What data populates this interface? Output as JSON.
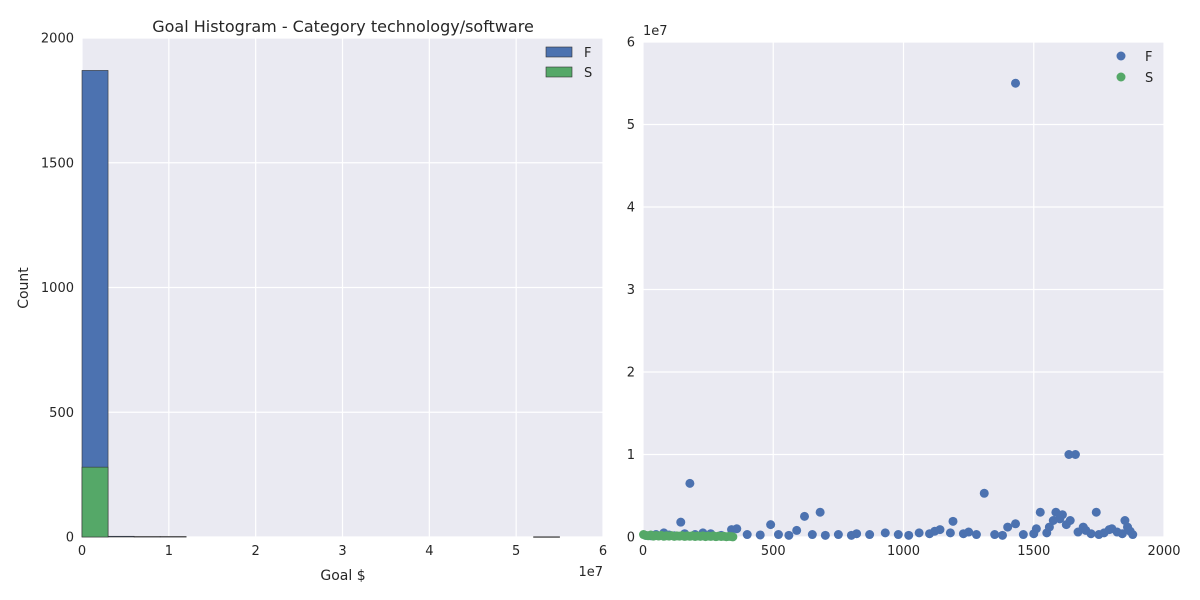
{
  "chart_data": [
    {
      "type": "bar",
      "subtype": "histogram",
      "title": "Goal Histogram - Category technology/software",
      "xlabel": "Goal $",
      "ylabel": "Count",
      "x_offset_label": "1e7",
      "xlim": [
        0,
        60000000
      ],
      "ylim": [
        0,
        2000
      ],
      "xticks": [
        "0",
        "1",
        "2",
        "3",
        "4",
        "5",
        "6"
      ],
      "yticks": [
        "0",
        "500",
        "1000",
        "1500",
        "2000"
      ],
      "legend_placement": "top-right",
      "grid": true,
      "series": [
        {
          "name": "F",
          "color": "#4c72b0",
          "bins": [
            {
              "x0": 0,
              "x1": 3000000,
              "count": 1870
            },
            {
              "x0": 3000000,
              "x1": 6000000,
              "count": 3
            },
            {
              "x0": 6000000,
              "x1": 9000000,
              "count": 2
            },
            {
              "x0": 9000000,
              "x1": 12000000,
              "count": 2
            },
            {
              "x0": 52000000,
              "x1": 55000000,
              "count": 1
            }
          ]
        },
        {
          "name": "S",
          "color": "#55a868",
          "bins": [
            {
              "x0": 0,
              "x1": 3000000,
              "count": 280
            }
          ]
        }
      ]
    },
    {
      "type": "scatter",
      "title": "",
      "xlabel": "",
      "ylabel": "",
      "y_offset_label": "1e7",
      "xlim": [
        0,
        2000
      ],
      "ylim": [
        0,
        60000000
      ],
      "xticks": [
        "0",
        "500",
        "1000",
        "1500",
        "2000"
      ],
      "yticks": [
        "0",
        "1",
        "2",
        "3",
        "4",
        "5",
        "6"
      ],
      "legend_placement": "top-right",
      "grid": true,
      "series": [
        {
          "name": "F",
          "color": "#4c72b0",
          "points": [
            [
              10,
              200000
            ],
            [
              30,
              150000
            ],
            [
              50,
              300000
            ],
            [
              80,
              500000
            ],
            [
              100,
              250000
            ],
            [
              120,
              150000
            ],
            [
              145,
              1800000
            ],
            [
              160,
              400000
            ],
            [
              180,
              6500000
            ],
            [
              200,
              300000
            ],
            [
              230,
              500000
            ],
            [
              260,
              400000
            ],
            [
              300,
              200000
            ],
            [
              340,
              900000
            ],
            [
              360,
              1000000
            ],
            [
              400,
              300000
            ],
            [
              450,
              250000
            ],
            [
              490,
              1500000
            ],
            [
              520,
              300000
            ],
            [
              560,
              200000
            ],
            [
              590,
              800000
            ],
            [
              620,
              2500000
            ],
            [
              650,
              300000
            ],
            [
              680,
              3000000
            ],
            [
              700,
              200000
            ],
            [
              750,
              300000
            ],
            [
              800,
              200000
            ],
            [
              820,
              400000
            ],
            [
              870,
              300000
            ],
            [
              930,
              500000
            ],
            [
              980,
              300000
            ],
            [
              1020,
              200000
            ],
            [
              1060,
              500000
            ],
            [
              1100,
              400000
            ],
            [
              1120,
              700000
            ],
            [
              1140,
              900000
            ],
            [
              1180,
              500000
            ],
            [
              1190,
              1900000
            ],
            [
              1230,
              400000
            ],
            [
              1250,
              600000
            ],
            [
              1280,
              300000
            ],
            [
              1310,
              5300000
            ],
            [
              1350,
              300000
            ],
            [
              1380,
              200000
            ],
            [
              1400,
              1200000
            ],
            [
              1430,
              55000000
            ],
            [
              1430,
              1600000
            ],
            [
              1460,
              300000
            ],
            [
              1500,
              400000
            ],
            [
              1510,
              1000000
            ],
            [
              1525,
              3000000
            ],
            [
              1550,
              500000
            ],
            [
              1560,
              1200000
            ],
            [
              1575,
              2000000
            ],
            [
              1585,
              3000000
            ],
            [
              1600,
              2200000
            ],
            [
              1610,
              2700000
            ],
            [
              1625,
              1500000
            ],
            [
              1635,
              10000000
            ],
            [
              1640,
              2000000
            ],
            [
              1660,
              10000000
            ],
            [
              1670,
              600000
            ],
            [
              1690,
              1200000
            ],
            [
              1700,
              800000
            ],
            [
              1720,
              400000
            ],
            [
              1740,
              3000000
            ],
            [
              1750,
              300000
            ],
            [
              1770,
              500000
            ],
            [
              1790,
              900000
            ],
            [
              1800,
              1000000
            ],
            [
              1820,
              600000
            ],
            [
              1840,
              400000
            ],
            [
              1850,
              2000000
            ],
            [
              1860,
              1200000
            ],
            [
              1870,
              700000
            ],
            [
              1880,
              300000
            ]
          ]
        },
        {
          "name": "S",
          "color": "#55a868",
          "points": [
            [
              2,
              300000
            ],
            [
              10,
              200000
            ],
            [
              20,
              150000
            ],
            [
              30,
              250000
            ],
            [
              40,
              100000
            ],
            [
              50,
              180000
            ],
            [
              60,
              120000
            ],
            [
              70,
              200000
            ],
            [
              80,
              90000
            ],
            [
              90,
              150000
            ],
            [
              100,
              110000
            ],
            [
              110,
              170000
            ],
            [
              120,
              80000
            ],
            [
              130,
              140000
            ],
            [
              140,
              100000
            ],
            [
              150,
              160000
            ],
            [
              160,
              70000
            ],
            [
              170,
              130000
            ],
            [
              180,
              90000
            ],
            [
              190,
              150000
            ],
            [
              200,
              60000
            ],
            [
              210,
              120000
            ],
            [
              220,
              80000
            ],
            [
              230,
              140000
            ],
            [
              240,
              50000
            ],
            [
              250,
              110000
            ],
            [
              260,
              70000
            ],
            [
              270,
              130000
            ],
            [
              280,
              40000
            ],
            [
              290,
              100000
            ],
            [
              300,
              60000
            ],
            [
              310,
              90000
            ],
            [
              320,
              30000
            ],
            [
              330,
              70000
            ],
            [
              340,
              50000
            ],
            [
              345,
              20000
            ]
          ]
        }
      ]
    }
  ]
}
